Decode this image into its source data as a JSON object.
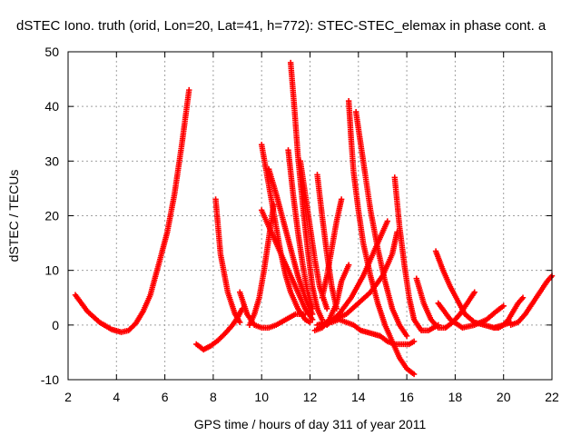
{
  "chart_data": {
    "type": "scatter",
    "title": "dSTEC Iono. truth (orid, Lon=20, Lat=41, h=772): STEC-STEC_elemax in phase cont. a",
    "xlabel": "GPS time / hours of day 311 of year 2011",
    "ylabel": "dSTEC  / TECUs",
    "xlim": [
      2,
      22
    ],
    "ylim": [
      -10,
      50
    ],
    "xticks": [
      2,
      4,
      6,
      8,
      10,
      12,
      14,
      16,
      18,
      20,
      22
    ],
    "yticks": [
      -10,
      0,
      10,
      20,
      30,
      40,
      50
    ],
    "grid": true,
    "marker": "+",
    "color": "#ff0000",
    "series": [
      {
        "x": [
          2.3,
          2.8,
          3.3,
          3.8,
          4.2,
          4.5,
          4.8,
          5.1,
          5.4,
          5.8,
          6.1,
          6.4,
          6.7,
          7.0
        ],
        "y": [
          5.5,
          2.5,
          0.5,
          -0.8,
          -1.3,
          -1.0,
          0.3,
          2.5,
          5.5,
          12.0,
          17.0,
          24.0,
          33.0,
          43.0
        ]
      },
      {
        "x": [
          7.3,
          7.6,
          7.9,
          8.2,
          8.5,
          8.8,
          9.0,
          9.2
        ],
        "y": [
          -3.5,
          -4.5,
          -3.8,
          -2.8,
          -1.5,
          0.0,
          1.3,
          3.0
        ]
      },
      {
        "x": [
          8.1,
          8.3,
          8.6,
          8.9,
          9.1
        ],
        "y": [
          23.0,
          13.0,
          6.0,
          2.0,
          0.5
        ]
      },
      {
        "x": [
          9.1,
          9.4,
          9.7,
          10.0,
          10.3,
          10.6,
          11.0,
          11.4,
          11.8
        ],
        "y": [
          6.0,
          2.0,
          0.0,
          -0.5,
          -0.5,
          0.0,
          1.0,
          2.0,
          2.0
        ]
      },
      {
        "x": [
          9.5,
          9.7,
          9.9,
          10.1,
          10.3,
          10.5
        ],
        "y": [
          0.0,
          2.0,
          5.0,
          10.0,
          16.0,
          22.0
        ]
      },
      {
        "x": [
          10.0,
          10.2,
          10.4,
          10.6,
          10.8,
          11.0,
          11.2,
          11.5,
          11.8,
          12.0
        ],
        "y": [
          33.0,
          28.0,
          23.0,
          18.0,
          13.0,
          9.0,
          6.0,
          3.0,
          1.0,
          0.5
        ]
      },
      {
        "x": [
          10.0,
          10.3,
          10.6,
          10.9,
          11.2,
          11.5,
          11.8,
          12.1
        ],
        "y": [
          21.0,
          18.0,
          15.0,
          12.0,
          9.0,
          6.0,
          3.0,
          1.0
        ]
      },
      {
        "x": [
          10.3,
          10.6,
          10.9,
          11.2,
          11.5,
          11.8,
          12.1
        ],
        "y": [
          28.5,
          24.0,
          19.0,
          14.0,
          9.0,
          5.0,
          2.0
        ]
      },
      {
        "x": [
          11.1,
          11.3,
          11.5,
          11.7,
          11.9,
          12.1
        ],
        "y": [
          32.0,
          24.0,
          17.0,
          11.0,
          6.0,
          3.0
        ]
      },
      {
        "x": [
          11.2,
          11.35,
          11.5,
          11.7,
          11.9,
          12.1,
          12.3,
          12.5
        ],
        "y": [
          48.0,
          40.0,
          31.0,
          22.0,
          14.0,
          7.0,
          3.0,
          1.0
        ]
      },
      {
        "x": [
          11.6,
          11.8,
          12.0,
          12.2,
          12.4,
          12.7
        ],
        "y": [
          30.0,
          24.0,
          18.0,
          12.0,
          7.0,
          3.0
        ]
      },
      {
        "x": [
          12.2,
          12.5,
          12.8,
          13.1,
          13.3,
          13.6
        ],
        "y": [
          -1.0,
          -0.5,
          1.0,
          4.0,
          8.0,
          11.0
        ]
      },
      {
        "x": [
          12.3,
          12.5,
          12.7,
          12.9,
          13.1
        ],
        "y": [
          27.5,
          20.0,
          13.0,
          7.0,
          3.0
        ]
      },
      {
        "x": [
          12.3,
          12.6,
          12.9,
          13.2,
          13.5,
          13.8,
          14.1,
          14.5,
          14.9,
          15.2,
          15.5,
          15.8,
          16.1,
          16.3
        ],
        "y": [
          0.0,
          0.5,
          0.5,
          1.0,
          0.5,
          0.0,
          -1.0,
          -1.5,
          -2.0,
          -3.0,
          -3.5,
          -3.5,
          -3.5,
          -3.0
        ]
      },
      {
        "x": [
          12.5,
          12.7,
          12.9,
          13.1,
          13.3
        ],
        "y": [
          5.0,
          9.0,
          14.0,
          19.0,
          23.0
        ]
      },
      {
        "x": [
          13.6,
          13.7,
          13.8,
          14.0,
          14.2,
          14.5,
          14.8,
          15.1,
          15.4,
          15.7,
          16.0,
          16.3
        ],
        "y": [
          41.0,
          34.0,
          28.0,
          21.0,
          15.0,
          9.0,
          4.0,
          0.0,
          -3.0,
          -6.0,
          -8.0,
          -9.0
        ]
      },
      {
        "x": [
          13.9,
          14.1,
          14.3,
          14.5,
          14.8,
          15.1,
          15.4,
          15.7,
          16.0
        ],
        "y": [
          39.0,
          33.0,
          27.0,
          21.0,
          14.0,
          8.0,
          3.0,
          0.0,
          -2.0
        ]
      },
      {
        "x": [
          12.7,
          13.2,
          13.7,
          14.2,
          14.7,
          15.2
        ],
        "y": [
          0.0,
          2.0,
          5.0,
          9.0,
          14.0,
          19.0
        ]
      },
      {
        "x": [
          13.0,
          13.5,
          14.0,
          14.5,
          15.0,
          15.4,
          15.6
        ],
        "y": [
          1.0,
          2.0,
          4.0,
          6.0,
          9.0,
          13.0,
          17.0
        ]
      },
      {
        "x": [
          15.5,
          15.7,
          15.9,
          16.1,
          16.3,
          16.6,
          16.9,
          17.3
        ],
        "y": [
          27.0,
          18.0,
          11.0,
          5.0,
          1.0,
          -1.0,
          -1.0,
          0.0
        ]
      },
      {
        "x": [
          16.4,
          16.7,
          17.0,
          17.3,
          17.6,
          17.9,
          18.2,
          18.5,
          18.8
        ],
        "y": [
          8.5,
          4.0,
          1.0,
          -0.5,
          -0.5,
          0.5,
          2.0,
          4.0,
          6.0
        ]
      },
      {
        "x": [
          17.2,
          17.5,
          17.8,
          18.1,
          18.4,
          18.8,
          19.2,
          19.6,
          20.0,
          20.3
        ],
        "y": [
          13.5,
          10.0,
          7.0,
          4.5,
          2.0,
          0.5,
          0.0,
          -0.5,
          0.0,
          0.5
        ]
      },
      {
        "x": [
          17.3,
          17.8,
          18.3,
          18.8,
          19.3,
          19.7,
          20.0
        ],
        "y": [
          4.0,
          1.0,
          -0.5,
          0.0,
          1.0,
          2.5,
          3.5
        ]
      },
      {
        "x": [
          19.6,
          19.8,
          20.0,
          20.2,
          20.4,
          20.6,
          20.8
        ],
        "y": [
          -0.5,
          -0.5,
          0.0,
          1.0,
          2.5,
          4.0,
          5.0
        ]
      },
      {
        "x": [
          20.3,
          20.6,
          20.9,
          21.2,
          21.5,
          21.8,
          22.0
        ],
        "y": [
          0.0,
          0.5,
          2.0,
          4.0,
          6.0,
          8.0,
          9.0
        ]
      }
    ]
  }
}
